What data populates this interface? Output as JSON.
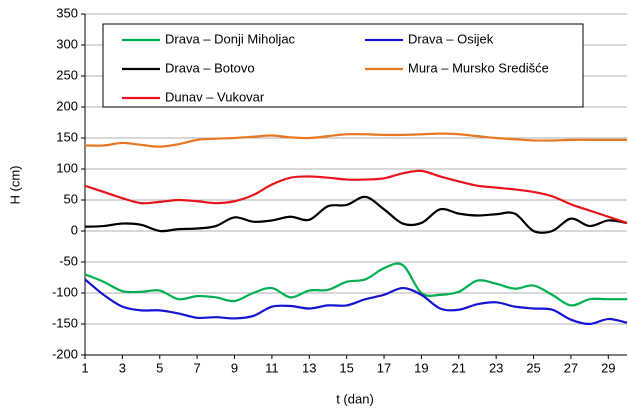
{
  "chart_data": {
    "type": "line",
    "xlabel": "t (dan)",
    "ylabel": "H (cm)",
    "x": [
      1,
      2,
      3,
      4,
      5,
      6,
      7,
      8,
      9,
      10,
      11,
      12,
      13,
      14,
      15,
      16,
      17,
      18,
      19,
      20,
      21,
      22,
      23,
      24,
      25,
      26,
      27,
      28,
      29,
      30
    ],
    "xlim": [
      1,
      30
    ],
    "xticks": [
      1,
      3,
      5,
      7,
      9,
      11,
      13,
      15,
      17,
      19,
      21,
      23,
      25,
      27,
      29
    ],
    "ylim": [
      -200,
      350
    ],
    "yticks": [
      -200,
      -150,
      -100,
      -50,
      0,
      50,
      100,
      150,
      200,
      250,
      300,
      350
    ],
    "grid": true,
    "legend": "upper center",
    "series": [
      {
        "name": "Drava – Donji Miholjac",
        "color": "#00b050",
        "values": [
          -70,
          -82,
          -97,
          -98,
          -96,
          -110,
          -105,
          -107,
          -113,
          -100,
          -92,
          -107,
          -96,
          -95,
          -82,
          -78,
          -60,
          -55,
          -100,
          -103,
          -98,
          -80,
          -85,
          -93,
          -88,
          -103,
          -120,
          -110,
          -110,
          -110
        ]
      },
      {
        "name": "Drava – Osijek",
        "color": "#1414d2",
        "values": [
          -78,
          -103,
          -122,
          -128,
          -128,
          -133,
          -140,
          -139,
          -141,
          -137,
          -122,
          -121,
          -125,
          -120,
          -120,
          -110,
          -103,
          -92,
          -103,
          -125,
          -127,
          -118,
          -115,
          -122,
          -125,
          -127,
          -143,
          -150,
          -142,
          -148
        ]
      },
      {
        "name": "Drava – Botovo",
        "color": "#000000",
        "values": [
          7,
          8,
          12,
          10,
          0,
          3,
          4,
          8,
          22,
          15,
          17,
          23,
          18,
          40,
          42,
          55,
          35,
          12,
          13,
          35,
          28,
          25,
          27,
          28,
          0,
          0,
          20,
          8,
          17,
          13
        ]
      },
      {
        "name": "Mura – Mursko Središće",
        "color": "#e87722",
        "values": [
          138,
          138,
          142,
          139,
          136,
          140,
          147,
          149,
          150,
          152,
          154,
          151,
          150,
          153,
          156,
          156,
          155,
          155,
          156,
          157,
          156,
          153,
          150,
          148,
          146,
          146,
          147,
          147,
          147,
          147
        ]
      },
      {
        "name": "Dunav – Vukovar",
        "color": "#e8141c",
        "values": [
          73,
          63,
          53,
          45,
          47,
          50,
          48,
          45,
          48,
          58,
          75,
          86,
          88,
          86,
          83,
          83,
          85,
          93,
          97,
          88,
          80,
          73,
          70,
          67,
          63,
          56,
          43,
          33,
          23,
          13
        ]
      }
    ]
  }
}
